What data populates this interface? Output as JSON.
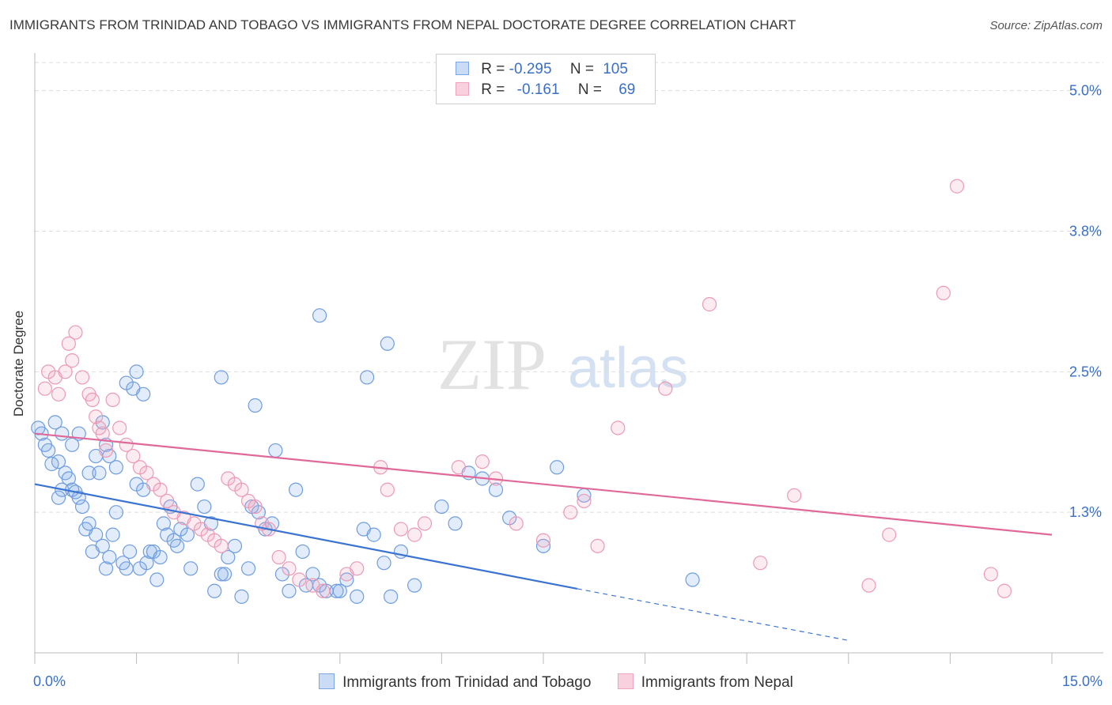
{
  "title": "IMMIGRANTS FROM TRINIDAD AND TOBAGO VS IMMIGRANTS FROM NEPAL DOCTORATE DEGREE CORRELATION CHART",
  "source": "Source: ZipAtlas.com",
  "legend_top": {
    "rows": [
      {
        "r_label": "R =",
        "r_value": "-0.295",
        "n_label": "N =",
        "n_value": "105"
      },
      {
        "r_label": "R =",
        "r_value": "-0.161",
        "n_label": "N =",
        "n_value": "69"
      }
    ]
  },
  "watermark": {
    "zip": "ZIP",
    "atlas": "atlas"
  },
  "chart_data": {
    "type": "scatter",
    "title": "IMMIGRANTS FROM TRINIDAD AND TOBAGO VS IMMIGRANTS FROM NEPAL DOCTORATE DEGREE CORRELATION CHART",
    "xlabel": "",
    "ylabel": "Doctorate Degree",
    "xlim": [
      0,
      15
    ],
    "ylim": [
      0,
      5.3
    ],
    "x_tick_labels": [
      "0.0%",
      "15.0%"
    ],
    "y_tick_values": [
      1.25,
      2.5,
      3.75,
      5.0
    ],
    "y_tick_labels": [
      "1.3%",
      "2.5%",
      "3.8%",
      "5.0%"
    ],
    "grid": true,
    "legend_position": "bottom",
    "colors": {
      "series1": "#7ba7e6",
      "series1_line": "#3a73d2",
      "series2": "#f0a3bc",
      "series2_line": "#e0699a"
    },
    "series": [
      {
        "name": "Immigrants from Trinidad and Tobago",
        "trend": {
          "x": [
            0.0,
            8.0
          ],
          "y": [
            1.5,
            0.57
          ],
          "dashed_extension": {
            "x": [
              8.0,
              12.0
            ],
            "y": [
              0.57,
              0.11
            ]
          }
        },
        "points": [
          [
            0.05,
            2.0
          ],
          [
            0.1,
            1.95
          ],
          [
            0.2,
            1.8
          ],
          [
            0.15,
            1.85
          ],
          [
            0.3,
            2.05
          ],
          [
            0.35,
            1.7
          ],
          [
            0.4,
            1.95
          ],
          [
            0.25,
            1.68
          ],
          [
            0.45,
            1.6
          ],
          [
            0.5,
            1.55
          ],
          [
            0.55,
            1.45
          ],
          [
            0.6,
            1.43
          ],
          [
            0.35,
            1.38
          ],
          [
            0.4,
            1.45
          ],
          [
            0.65,
            1.38
          ],
          [
            0.7,
            1.3
          ],
          [
            0.75,
            1.1
          ],
          [
            0.8,
            1.15
          ],
          [
            0.85,
            0.9
          ],
          [
            0.9,
            1.05
          ],
          [
            1.0,
            0.95
          ],
          [
            1.05,
            0.75
          ],
          [
            1.1,
            0.85
          ],
          [
            1.15,
            1.05
          ],
          [
            1.2,
            1.25
          ],
          [
            1.3,
            0.8
          ],
          [
            1.35,
            0.75
          ],
          [
            1.4,
            0.9
          ],
          [
            1.5,
            1.5
          ],
          [
            1.55,
            0.75
          ],
          [
            1.6,
            1.45
          ],
          [
            1.65,
            0.8
          ],
          [
            1.7,
            0.9
          ],
          [
            1.75,
            0.9
          ],
          [
            1.8,
            0.65
          ],
          [
            1.85,
            0.85
          ],
          [
            1.9,
            1.15
          ],
          [
            1.95,
            1.05
          ],
          [
            2.0,
            1.3
          ],
          [
            2.05,
            1.0
          ],
          [
            2.1,
            0.95
          ],
          [
            2.15,
            1.1
          ],
          [
            2.25,
            1.05
          ],
          [
            2.3,
            0.75
          ],
          [
            2.4,
            1.5
          ],
          [
            2.5,
            1.3
          ],
          [
            2.6,
            1.15
          ],
          [
            2.65,
            0.55
          ],
          [
            2.75,
            0.7
          ],
          [
            2.8,
            0.7
          ],
          [
            2.85,
            0.85
          ],
          [
            2.95,
            0.95
          ],
          [
            3.05,
            0.5
          ],
          [
            3.15,
            0.75
          ],
          [
            3.2,
            1.3
          ],
          [
            3.3,
            1.25
          ],
          [
            3.4,
            1.1
          ],
          [
            3.5,
            1.15
          ],
          [
            3.65,
            0.7
          ],
          [
            3.75,
            0.55
          ],
          [
            3.85,
            1.45
          ],
          [
            3.95,
            0.9
          ],
          [
            4.0,
            0.6
          ],
          [
            4.1,
            0.7
          ],
          [
            4.2,
            0.6
          ],
          [
            4.3,
            0.55
          ],
          [
            4.45,
            0.55
          ],
          [
            4.5,
            0.55
          ],
          [
            4.6,
            0.65
          ],
          [
            4.75,
            0.5
          ],
          [
            4.85,
            1.1
          ],
          [
            5.0,
            1.05
          ],
          [
            5.15,
            0.8
          ],
          [
            5.25,
            0.5
          ],
          [
            5.4,
            0.9
          ],
          [
            5.6,
            0.6
          ],
          [
            6.0,
            1.3
          ],
          [
            6.2,
            1.15
          ],
          [
            6.4,
            1.6
          ],
          [
            6.6,
            1.55
          ],
          [
            6.8,
            1.45
          ],
          [
            7.0,
            1.2
          ],
          [
            7.5,
            0.95
          ],
          [
            7.7,
            1.65
          ],
          [
            8.1,
            1.4
          ],
          [
            9.7,
            0.65
          ],
          [
            1.5,
            2.5
          ],
          [
            1.45,
            2.35
          ],
          [
            1.6,
            2.3
          ],
          [
            1.35,
            2.4
          ],
          [
            2.75,
            2.45
          ],
          [
            3.25,
            2.2
          ],
          [
            3.55,
            1.8
          ],
          [
            4.2,
            3.0
          ],
          [
            4.9,
            2.45
          ],
          [
            5.2,
            2.75
          ],
          [
            1.0,
            2.05
          ],
          [
            1.05,
            1.85
          ],
          [
            1.1,
            1.75
          ],
          [
            0.55,
            1.85
          ],
          [
            0.65,
            1.95
          ],
          [
            0.8,
            1.6
          ],
          [
            0.9,
            1.75
          ],
          [
            0.95,
            1.6
          ],
          [
            1.2,
            1.65
          ]
        ]
      },
      {
        "name": "Immigrants from Nepal",
        "trend": {
          "x": [
            0.0,
            15.0
          ],
          "y": [
            1.95,
            1.05
          ]
        },
        "points": [
          [
            0.15,
            2.35
          ],
          [
            0.2,
            2.5
          ],
          [
            0.3,
            2.45
          ],
          [
            0.35,
            2.3
          ],
          [
            0.45,
            2.5
          ],
          [
            0.5,
            2.75
          ],
          [
            0.55,
            2.6
          ],
          [
            0.6,
            2.85
          ],
          [
            0.7,
            2.45
          ],
          [
            0.8,
            2.3
          ],
          [
            0.85,
            2.25
          ],
          [
            0.9,
            2.1
          ],
          [
            0.95,
            2.0
          ],
          [
            1.0,
            1.95
          ],
          [
            1.05,
            1.8
          ],
          [
            1.15,
            2.25
          ],
          [
            1.25,
            2.0
          ],
          [
            1.35,
            1.85
          ],
          [
            1.45,
            1.75
          ],
          [
            1.55,
            1.65
          ],
          [
            1.65,
            1.6
          ],
          [
            1.75,
            1.5
          ],
          [
            1.85,
            1.45
          ],
          [
            1.95,
            1.35
          ],
          [
            2.05,
            1.25
          ],
          [
            2.2,
            1.2
          ],
          [
            2.35,
            1.15
          ],
          [
            2.45,
            1.1
          ],
          [
            2.55,
            1.05
          ],
          [
            2.65,
            1.0
          ],
          [
            2.75,
            0.95
          ],
          [
            2.85,
            1.55
          ],
          [
            2.95,
            1.5
          ],
          [
            3.05,
            1.45
          ],
          [
            3.15,
            1.35
          ],
          [
            3.25,
            1.3
          ],
          [
            3.35,
            1.15
          ],
          [
            3.45,
            1.1
          ],
          [
            3.6,
            0.85
          ],
          [
            3.75,
            0.75
          ],
          [
            3.9,
            0.65
          ],
          [
            4.1,
            0.6
          ],
          [
            4.25,
            0.55
          ],
          [
            4.6,
            0.7
          ],
          [
            4.75,
            0.75
          ],
          [
            5.1,
            1.65
          ],
          [
            5.2,
            1.45
          ],
          [
            5.4,
            1.1
          ],
          [
            5.6,
            1.05
          ],
          [
            5.75,
            1.15
          ],
          [
            6.25,
            1.65
          ],
          [
            6.6,
            1.7
          ],
          [
            6.8,
            1.55
          ],
          [
            7.1,
            1.15
          ],
          [
            7.5,
            1.0
          ],
          [
            7.9,
            1.25
          ],
          [
            8.1,
            1.35
          ],
          [
            8.3,
            0.95
          ],
          [
            8.6,
            2.0
          ],
          [
            9.3,
            2.35
          ],
          [
            9.95,
            3.1
          ],
          [
            10.7,
            0.8
          ],
          [
            11.2,
            1.4
          ],
          [
            12.3,
            0.6
          ],
          [
            12.6,
            1.05
          ],
          [
            13.4,
            3.2
          ],
          [
            13.6,
            4.15
          ],
          [
            14.1,
            0.7
          ],
          [
            14.3,
            0.55
          ]
        ]
      }
    ]
  },
  "legend_bottom": [
    {
      "label": "Immigrants from Trinidad and Tobago"
    },
    {
      "label": "Immigrants from Nepal"
    }
  ]
}
